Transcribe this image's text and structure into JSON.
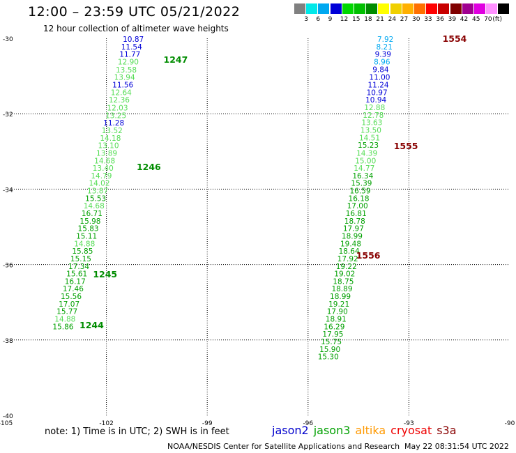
{
  "title": "12:00 – 23:59 UTC 05/21/2022",
  "subtitle": "12 hour collection of altimeter wave heights",
  "note": "note:  1) Time is in UTC; 2) SWH is in feet",
  "credit": "NOAA/NESDIS Center for Satellite Applications and Research",
  "timestamp": "May 22 08:31:54 UTC 2022",
  "satellites": [
    {
      "name": "jason2",
      "color": "#0000cc"
    },
    {
      "name": "jason3",
      "color": "#00a000"
    },
    {
      "name": "altika",
      "color": "#ff9900"
    },
    {
      "name": "cryosat",
      "color": "#ee0000"
    },
    {
      "name": "s3a",
      "color": "#880000"
    }
  ],
  "legend": {
    "colors": [
      "#808080",
      "#00e8e8",
      "#00a8f0",
      "#0000d8",
      "#00d800",
      "#00c000",
      "#008c00",
      "#ffff00",
      "#f0d000",
      "#ffb000",
      "#ff7000",
      "#ff0000",
      "#c80000",
      "#800000",
      "#a00090",
      "#e000e0",
      "#ff90ff",
      "#000000"
    ],
    "labels": [
      "3",
      "6",
      "9",
      "12",
      "15",
      "18",
      "21",
      "24",
      "27",
      "30",
      "33",
      "36",
      "39",
      "42",
      "45",
      "70",
      "(ft)"
    ]
  },
  "map": {
    "lon_range": [
      -105,
      -90
    ],
    "lat_range": [
      -40,
      -30
    ],
    "lon_ticks": [
      -105,
      -102,
      -99,
      -96,
      -93,
      -90
    ],
    "lat_ticks": [
      -30,
      -32,
      -34,
      -36,
      -38,
      -40
    ],
    "lon_tick_labels": [
      "-105",
      "-102",
      "-99",
      "-96",
      "-93",
      "-90"
    ],
    "lat_tick_labels": [
      "-30",
      "-32",
      "-34",
      "-36",
      "-38",
      "-40"
    ],
    "grid_lons": [
      -102,
      -99,
      -96,
      -93
    ],
    "grid_lats": [
      -32,
      -34,
      -36,
      -38
    ]
  },
  "tracks": [
    {
      "color_group": "west",
      "points": [
        {
          "lon": -101.2,
          "lat": -30.02,
          "v": "10.87",
          "c": "#0000d8"
        },
        {
          "lon": -101.25,
          "lat": -30.22,
          "v": "11.54",
          "c": "#0000d8"
        },
        {
          "lon": -101.3,
          "lat": -30.42,
          "v": "11.77",
          "c": "#0000d8"
        },
        {
          "lon": -101.35,
          "lat": -30.62,
          "v": "12.90",
          "c": "#55dd55"
        },
        {
          "lon": -101.41,
          "lat": -30.83,
          "v": "13.58",
          "c": "#55dd55"
        },
        {
          "lon": -101.46,
          "lat": -31.03,
          "v": "13.94",
          "c": "#55dd55"
        },
        {
          "lon": -101.51,
          "lat": -31.23,
          "v": "11.56",
          "c": "#0000d8"
        },
        {
          "lon": -101.56,
          "lat": -31.43,
          "v": "12.64",
          "c": "#55dd55"
        },
        {
          "lon": -101.62,
          "lat": -31.63,
          "v": "12.36",
          "c": "#55dd55"
        },
        {
          "lon": -101.67,
          "lat": -31.84,
          "v": "12.03",
          "c": "#55dd55"
        },
        {
          "lon": -101.72,
          "lat": -32.04,
          "v": "13.25",
          "c": "#55dd55"
        },
        {
          "lon": -101.78,
          "lat": -32.24,
          "v": "11.28",
          "c": "#0000d8"
        },
        {
          "lon": -101.83,
          "lat": -32.44,
          "v": "13.52",
          "c": "#55dd55"
        },
        {
          "lon": -101.88,
          "lat": -32.64,
          "v": "14.18",
          "c": "#55dd55"
        },
        {
          "lon": -101.94,
          "lat": -32.84,
          "v": "13.10",
          "c": "#55dd55"
        },
        {
          "lon": -101.99,
          "lat": -33.04,
          "v": "13.89",
          "c": "#55dd55"
        },
        {
          "lon": -102.05,
          "lat": -33.24,
          "v": "14.68",
          "c": "#55dd55"
        },
        {
          "lon": -102.1,
          "lat": -33.44,
          "v": "13.40",
          "c": "#55dd55"
        },
        {
          "lon": -102.15,
          "lat": -33.64,
          "v": "14.79",
          "c": "#55dd55"
        },
        {
          "lon": -102.21,
          "lat": -33.84,
          "v": "14.02",
          "c": "#55dd55"
        },
        {
          "lon": -102.26,
          "lat": -34.04,
          "v": "13.87",
          "c": "#55dd55"
        },
        {
          "lon": -102.32,
          "lat": -34.24,
          "v": "15.53",
          "c": "#00a000"
        },
        {
          "lon": -102.37,
          "lat": -34.44,
          "v": "14.68",
          "c": "#55dd55"
        },
        {
          "lon": -102.43,
          "lat": -34.64,
          "v": "16.71",
          "c": "#00a000"
        },
        {
          "lon": -102.48,
          "lat": -34.84,
          "v": "15.98",
          "c": "#00a000"
        },
        {
          "lon": -102.54,
          "lat": -35.04,
          "v": "15.83",
          "c": "#00a000"
        },
        {
          "lon": -102.59,
          "lat": -35.24,
          "v": "15.11",
          "c": "#00a000"
        },
        {
          "lon": -102.65,
          "lat": -35.44,
          "v": "14.88",
          "c": "#55dd55"
        },
        {
          "lon": -102.71,
          "lat": -35.64,
          "v": "15.85",
          "c": "#00a000"
        },
        {
          "lon": -102.76,
          "lat": -35.84,
          "v": "15.15",
          "c": "#00a000"
        },
        {
          "lon": -102.82,
          "lat": -36.04,
          "v": "17.34",
          "c": "#00a000"
        },
        {
          "lon": -102.88,
          "lat": -36.24,
          "v": "15.61",
          "c": "#00a000"
        },
        {
          "lon": -102.93,
          "lat": -36.44,
          "v": "16.17",
          "c": "#00a000"
        },
        {
          "lon": -102.99,
          "lat": -36.64,
          "v": "17.46",
          "c": "#00a000"
        },
        {
          "lon": -103.05,
          "lat": -36.84,
          "v": "15.56",
          "c": "#00a000"
        },
        {
          "lon": -103.11,
          "lat": -37.04,
          "v": "17.07",
          "c": "#00a000"
        },
        {
          "lon": -103.17,
          "lat": -37.24,
          "v": "15.77",
          "c": "#00a000"
        },
        {
          "lon": -103.23,
          "lat": -37.44,
          "v": "14.88",
          "c": "#55dd55"
        },
        {
          "lon": -103.29,
          "lat": -37.64,
          "v": "15.86",
          "c": "#00a000"
        }
      ]
    },
    {
      "color_group": "east",
      "points": [
        {
          "lon": -93.7,
          "lat": -30.02,
          "v": "7.92",
          "c": "#00a8f0"
        },
        {
          "lon": -93.73,
          "lat": -30.22,
          "v": "8.21",
          "c": "#00a8f0"
        },
        {
          "lon": -93.77,
          "lat": -30.42,
          "v": "9.39",
          "c": "#0000d8"
        },
        {
          "lon": -93.8,
          "lat": -30.62,
          "v": "8.96",
          "c": "#00a8f0"
        },
        {
          "lon": -93.84,
          "lat": -30.82,
          "v": "9.84",
          "c": "#0000d8"
        },
        {
          "lon": -93.87,
          "lat": -31.03,
          "v": "11.00",
          "c": "#0000d8"
        },
        {
          "lon": -93.91,
          "lat": -31.23,
          "v": "11.24",
          "c": "#0000d8"
        },
        {
          "lon": -93.95,
          "lat": -31.43,
          "v": "10.97",
          "c": "#0000d8"
        },
        {
          "lon": -93.98,
          "lat": -31.63,
          "v": "10.94",
          "c": "#0000d8"
        },
        {
          "lon": -94.02,
          "lat": -31.83,
          "v": "12.88",
          "c": "#55dd55"
        },
        {
          "lon": -94.06,
          "lat": -32.03,
          "v": "12.78",
          "c": "#55dd55"
        },
        {
          "lon": -94.1,
          "lat": -32.23,
          "v": "13.63",
          "c": "#55dd55"
        },
        {
          "lon": -94.13,
          "lat": -32.43,
          "v": "13.50",
          "c": "#55dd55"
        },
        {
          "lon": -94.17,
          "lat": -32.63,
          "v": "14.51",
          "c": "#55dd55"
        },
        {
          "lon": -94.21,
          "lat": -32.83,
          "v": "15.23",
          "c": "#00a000"
        },
        {
          "lon": -94.25,
          "lat": -33.04,
          "v": "14.39",
          "c": "#55dd55"
        },
        {
          "lon": -94.29,
          "lat": -33.24,
          "v": "15.00",
          "c": "#55dd55"
        },
        {
          "lon": -94.33,
          "lat": -33.44,
          "v": "14.77",
          "c": "#55dd55"
        },
        {
          "lon": -94.37,
          "lat": -33.64,
          "v": "16.34",
          "c": "#00a000"
        },
        {
          "lon": -94.41,
          "lat": -33.84,
          "v": "15.39",
          "c": "#00a000"
        },
        {
          "lon": -94.45,
          "lat": -34.04,
          "v": "16.59",
          "c": "#00a000"
        },
        {
          "lon": -94.49,
          "lat": -34.24,
          "v": "16.18",
          "c": "#00a000"
        },
        {
          "lon": -94.53,
          "lat": -34.44,
          "v": "17.00",
          "c": "#00a000"
        },
        {
          "lon": -94.57,
          "lat": -34.64,
          "v": "16.81",
          "c": "#00a000"
        },
        {
          "lon": -94.61,
          "lat": -34.84,
          "v": "18.78",
          "c": "#00a000"
        },
        {
          "lon": -94.65,
          "lat": -35.04,
          "v": "17.97",
          "c": "#00a000"
        },
        {
          "lon": -94.69,
          "lat": -35.24,
          "v": "18.99",
          "c": "#00a000"
        },
        {
          "lon": -94.73,
          "lat": -35.44,
          "v": "19.48",
          "c": "#00a000"
        },
        {
          "lon": -94.78,
          "lat": -35.64,
          "v": "18.64",
          "c": "#00a000"
        },
        {
          "lon": -94.82,
          "lat": -35.84,
          "v": "17.92",
          "c": "#00a000"
        },
        {
          "lon": -94.86,
          "lat": -36.04,
          "v": "19.22",
          "c": "#00a000"
        },
        {
          "lon": -94.91,
          "lat": -36.24,
          "v": "19.02",
          "c": "#00a000"
        },
        {
          "lon": -94.95,
          "lat": -36.44,
          "v": "18.75",
          "c": "#00a000"
        },
        {
          "lon": -94.99,
          "lat": -36.64,
          "v": "18.89",
          "c": "#00a000"
        },
        {
          "lon": -95.04,
          "lat": -36.84,
          "v": "18.99",
          "c": "#00a000"
        },
        {
          "lon": -95.08,
          "lat": -37.04,
          "v": "19.21",
          "c": "#00a000"
        },
        {
          "lon": -95.13,
          "lat": -37.24,
          "v": "17.90",
          "c": "#00a000"
        },
        {
          "lon": -95.17,
          "lat": -37.44,
          "v": "18.91",
          "c": "#00a000"
        },
        {
          "lon": -95.22,
          "lat": -37.64,
          "v": "16.29",
          "c": "#00a000"
        },
        {
          "lon": -95.26,
          "lat": -37.84,
          "v": "17.95",
          "c": "#00a000"
        },
        {
          "lon": -95.31,
          "lat": -38.04,
          "v": "15.75",
          "c": "#00a000"
        },
        {
          "lon": -95.35,
          "lat": -38.24,
          "v": "15.90",
          "c": "#00a000"
        },
        {
          "lon": -95.4,
          "lat": -38.44,
          "v": "15.30",
          "c": "#00a000"
        }
      ]
    }
  ],
  "pass_labels": [
    {
      "text": "1247",
      "lon": -100.3,
      "lat": -30.55,
      "color": "#008c00"
    },
    {
      "text": "1246",
      "lon": -101.1,
      "lat": -33.4,
      "color": "#008c00"
    },
    {
      "text": "1245",
      "lon": -102.4,
      "lat": -36.25,
      "color": "#008c00"
    },
    {
      "text": "1244",
      "lon": -102.8,
      "lat": -37.6,
      "color": "#008c00"
    },
    {
      "text": "1554",
      "lon": -92.0,
      "lat": -30.0,
      "color": "#880000"
    },
    {
      "text": "1555",
      "lon": -93.45,
      "lat": -32.85,
      "color": "#880000"
    },
    {
      "text": "1556",
      "lon": -94.57,
      "lat": -35.75,
      "color": "#880000"
    }
  ]
}
